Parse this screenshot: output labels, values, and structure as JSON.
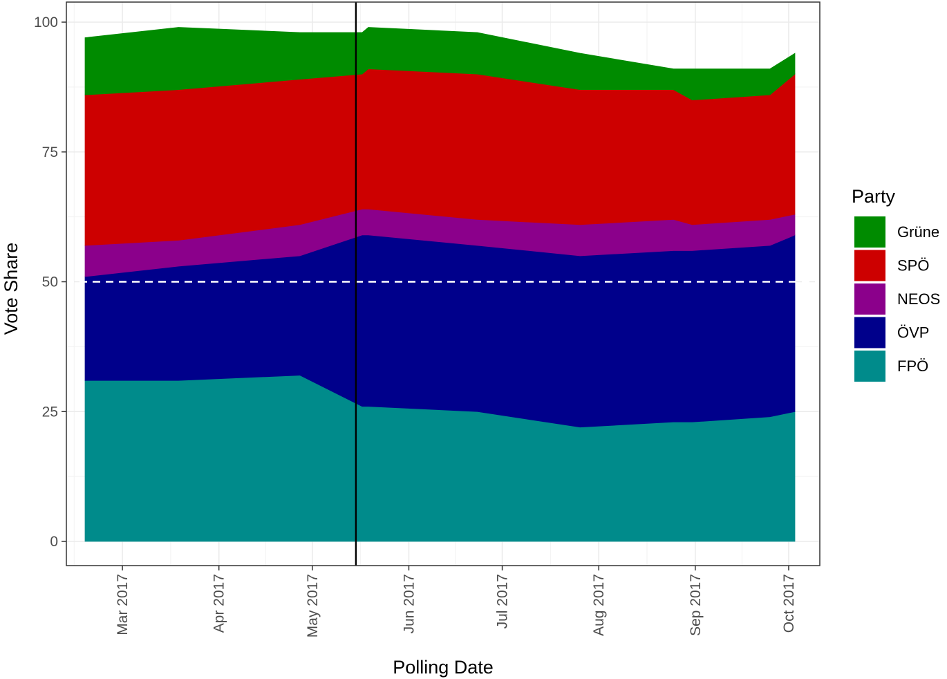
{
  "chart_data": {
    "type": "area",
    "stacked": true,
    "xlabel": "Polling Date",
    "ylabel": "Vote Share",
    "ylim": [
      0,
      100
    ],
    "yticks": [
      0,
      25,
      50,
      75,
      100
    ],
    "xlim": [
      "2017-02-11",
      "2017-10-11"
    ],
    "xticks": [
      {
        "date": "2017-03-01",
        "label": "Mar 2017"
      },
      {
        "date": "2017-04-01",
        "label": "Apr 2017"
      },
      {
        "date": "2017-05-01",
        "label": "May 2017"
      },
      {
        "date": "2017-06-01",
        "label": "Jun 2017"
      },
      {
        "date": "2017-07-01",
        "label": "Jul 2017"
      },
      {
        "date": "2017-08-01",
        "label": "Aug 2017"
      },
      {
        "date": "2017-09-01",
        "label": "Sep 2017"
      },
      {
        "date": "2017-10-01",
        "label": "Oct 2017"
      }
    ],
    "x": [
      "2017-02-17",
      "2017-03-19",
      "2017-04-27",
      "2017-05-17",
      "2017-05-19",
      "2017-06-23",
      "2017-07-26",
      "2017-08-25",
      "2017-08-31",
      "2017-09-25",
      "2017-10-03"
    ],
    "series": [
      {
        "name": "FPÖ",
        "color": "#008B8B",
        "values": [
          31,
          31,
          32,
          26,
          26,
          25,
          22,
          23,
          23,
          24,
          25
        ]
      },
      {
        "name": "ÖVP",
        "color": "#00008B",
        "values": [
          20,
          22,
          23,
          33,
          33,
          32,
          33,
          33,
          33,
          33,
          34
        ]
      },
      {
        "name": "NEOS",
        "color": "#8B008B",
        "values": [
          6,
          5,
          6,
          5,
          5,
          5,
          6,
          6,
          5,
          5,
          4
        ]
      },
      {
        "name": "SPÖ",
        "color": "#CD0000",
        "values": [
          29,
          29,
          28,
          26,
          27,
          28,
          26,
          25,
          24,
          24,
          27
        ]
      },
      {
        "name": "Grüne",
        "color": "#008B00",
        "values": [
          11,
          12,
          9,
          8,
          8,
          8,
          7,
          4,
          6,
          5,
          4
        ]
      }
    ],
    "reference_hline": {
      "y": 50,
      "style": "dashed",
      "color": "#ffffff"
    },
    "reference_vline": {
      "date": "2017-05-15",
      "color": "#000000"
    },
    "legend": {
      "title": "Party",
      "placement": "right",
      "order": [
        "Grüne",
        "SPÖ",
        "NEOS",
        "ÖVP",
        "FPÖ"
      ]
    },
    "grid": true,
    "theme_colors": {
      "panel_border": "#333333",
      "grid_major": "#ebebeb",
      "grid_minor": "#f2f2f2",
      "tick_text": "#4d4d4d"
    }
  }
}
